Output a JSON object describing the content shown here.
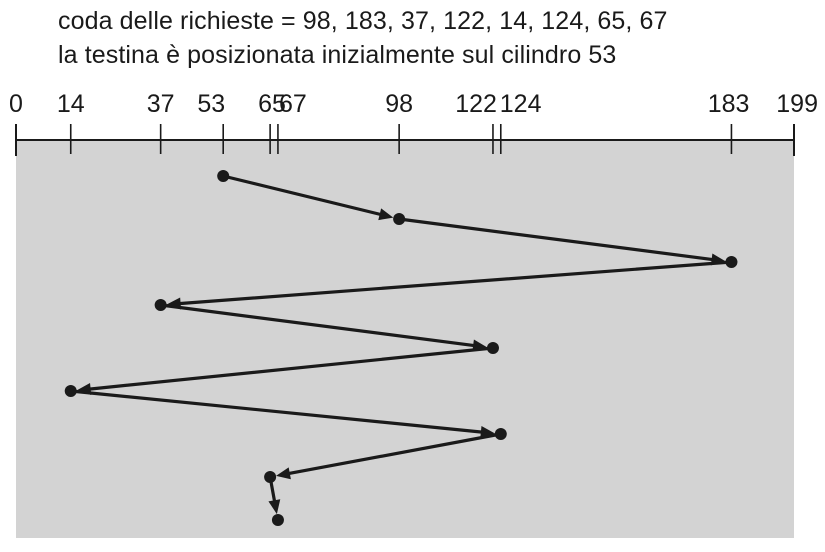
{
  "caption": {
    "queue_line": "coda delle richieste = 98, 183, 37, 122, 14, 124, 65, 67",
    "head_line": "la testina è posizionata inizialmente sul cilindro 53"
  },
  "axis": {
    "min": 0,
    "max": 199,
    "ticks": [
      {
        "value": 0,
        "label": "0"
      },
      {
        "value": 14,
        "label": "14"
      },
      {
        "value": 37,
        "label": "37"
      },
      {
        "value": 53,
        "label": "53"
      },
      {
        "value": 65,
        "label": "65"
      },
      {
        "value": 67,
        "label": "67"
      },
      {
        "value": 98,
        "label": "98"
      },
      {
        "value": 122,
        "label": "122"
      },
      {
        "value": 124,
        "label": "124"
      },
      {
        "value": 183,
        "label": "183"
      },
      {
        "value": 199,
        "label": "199"
      }
    ]
  },
  "head_path": {
    "start": 53,
    "sequence": [
      53,
      98,
      183,
      37,
      122,
      14,
      124,
      65,
      67
    ]
  },
  "colors": {
    "panel": "#d3d3d3",
    "ink": "#1a1a1a"
  }
}
